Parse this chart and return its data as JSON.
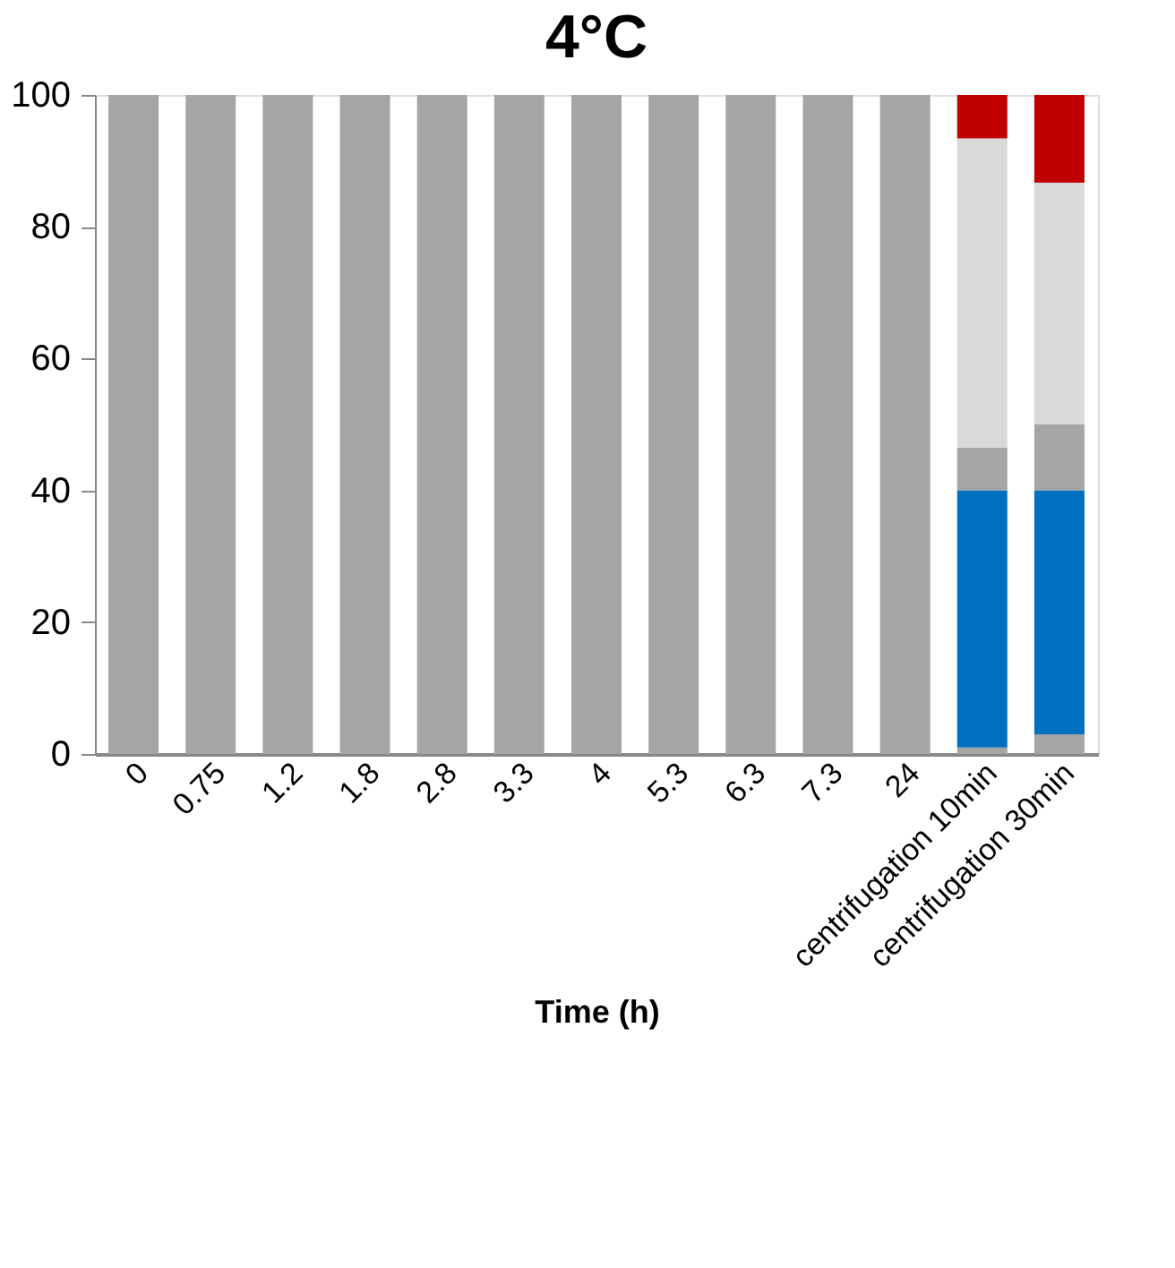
{
  "chart_data": {
    "type": "bar",
    "title": "4°C",
    "xlabel": "Time (h)",
    "stacked": true,
    "categories": [
      "0",
      "0.75",
      "1.2",
      "1.8",
      "2.8",
      "3.3",
      "4",
      "5.3",
      "6.3",
      "7.3",
      "24",
      "centrifugation 10min",
      "centrifugation 30min"
    ],
    "series": [
      {
        "color": "#a5a5a5",
        "values": [
          100,
          100,
          100,
          100,
          100,
          100,
          100,
          100,
          100,
          100,
          100,
          1,
          3
        ]
      },
      {
        "color": "#0070c0",
        "values": [
          null,
          null,
          null,
          null,
          null,
          null,
          null,
          null,
          null,
          null,
          null,
          39,
          37
        ]
      },
      {
        "color": "#a5a5a5",
        "values": [
          null,
          null,
          null,
          null,
          null,
          null,
          null,
          null,
          null,
          null,
          null,
          6.5,
          10
        ]
      },
      {
        "color": "#d9d9d9",
        "values": [
          null,
          null,
          null,
          null,
          null,
          null,
          null,
          null,
          null,
          null,
          null,
          46.9,
          36.7
        ]
      },
      {
        "color": "#c00000",
        "values": [
          null,
          null,
          null,
          null,
          null,
          null,
          null,
          null,
          null,
          null,
          null,
          6.6,
          13.3
        ]
      }
    ],
    "ylim": [
      0,
      100
    ],
    "yticks": [
      0,
      20,
      40,
      60,
      80,
      100
    ],
    "grid": false,
    "legend": false
  }
}
